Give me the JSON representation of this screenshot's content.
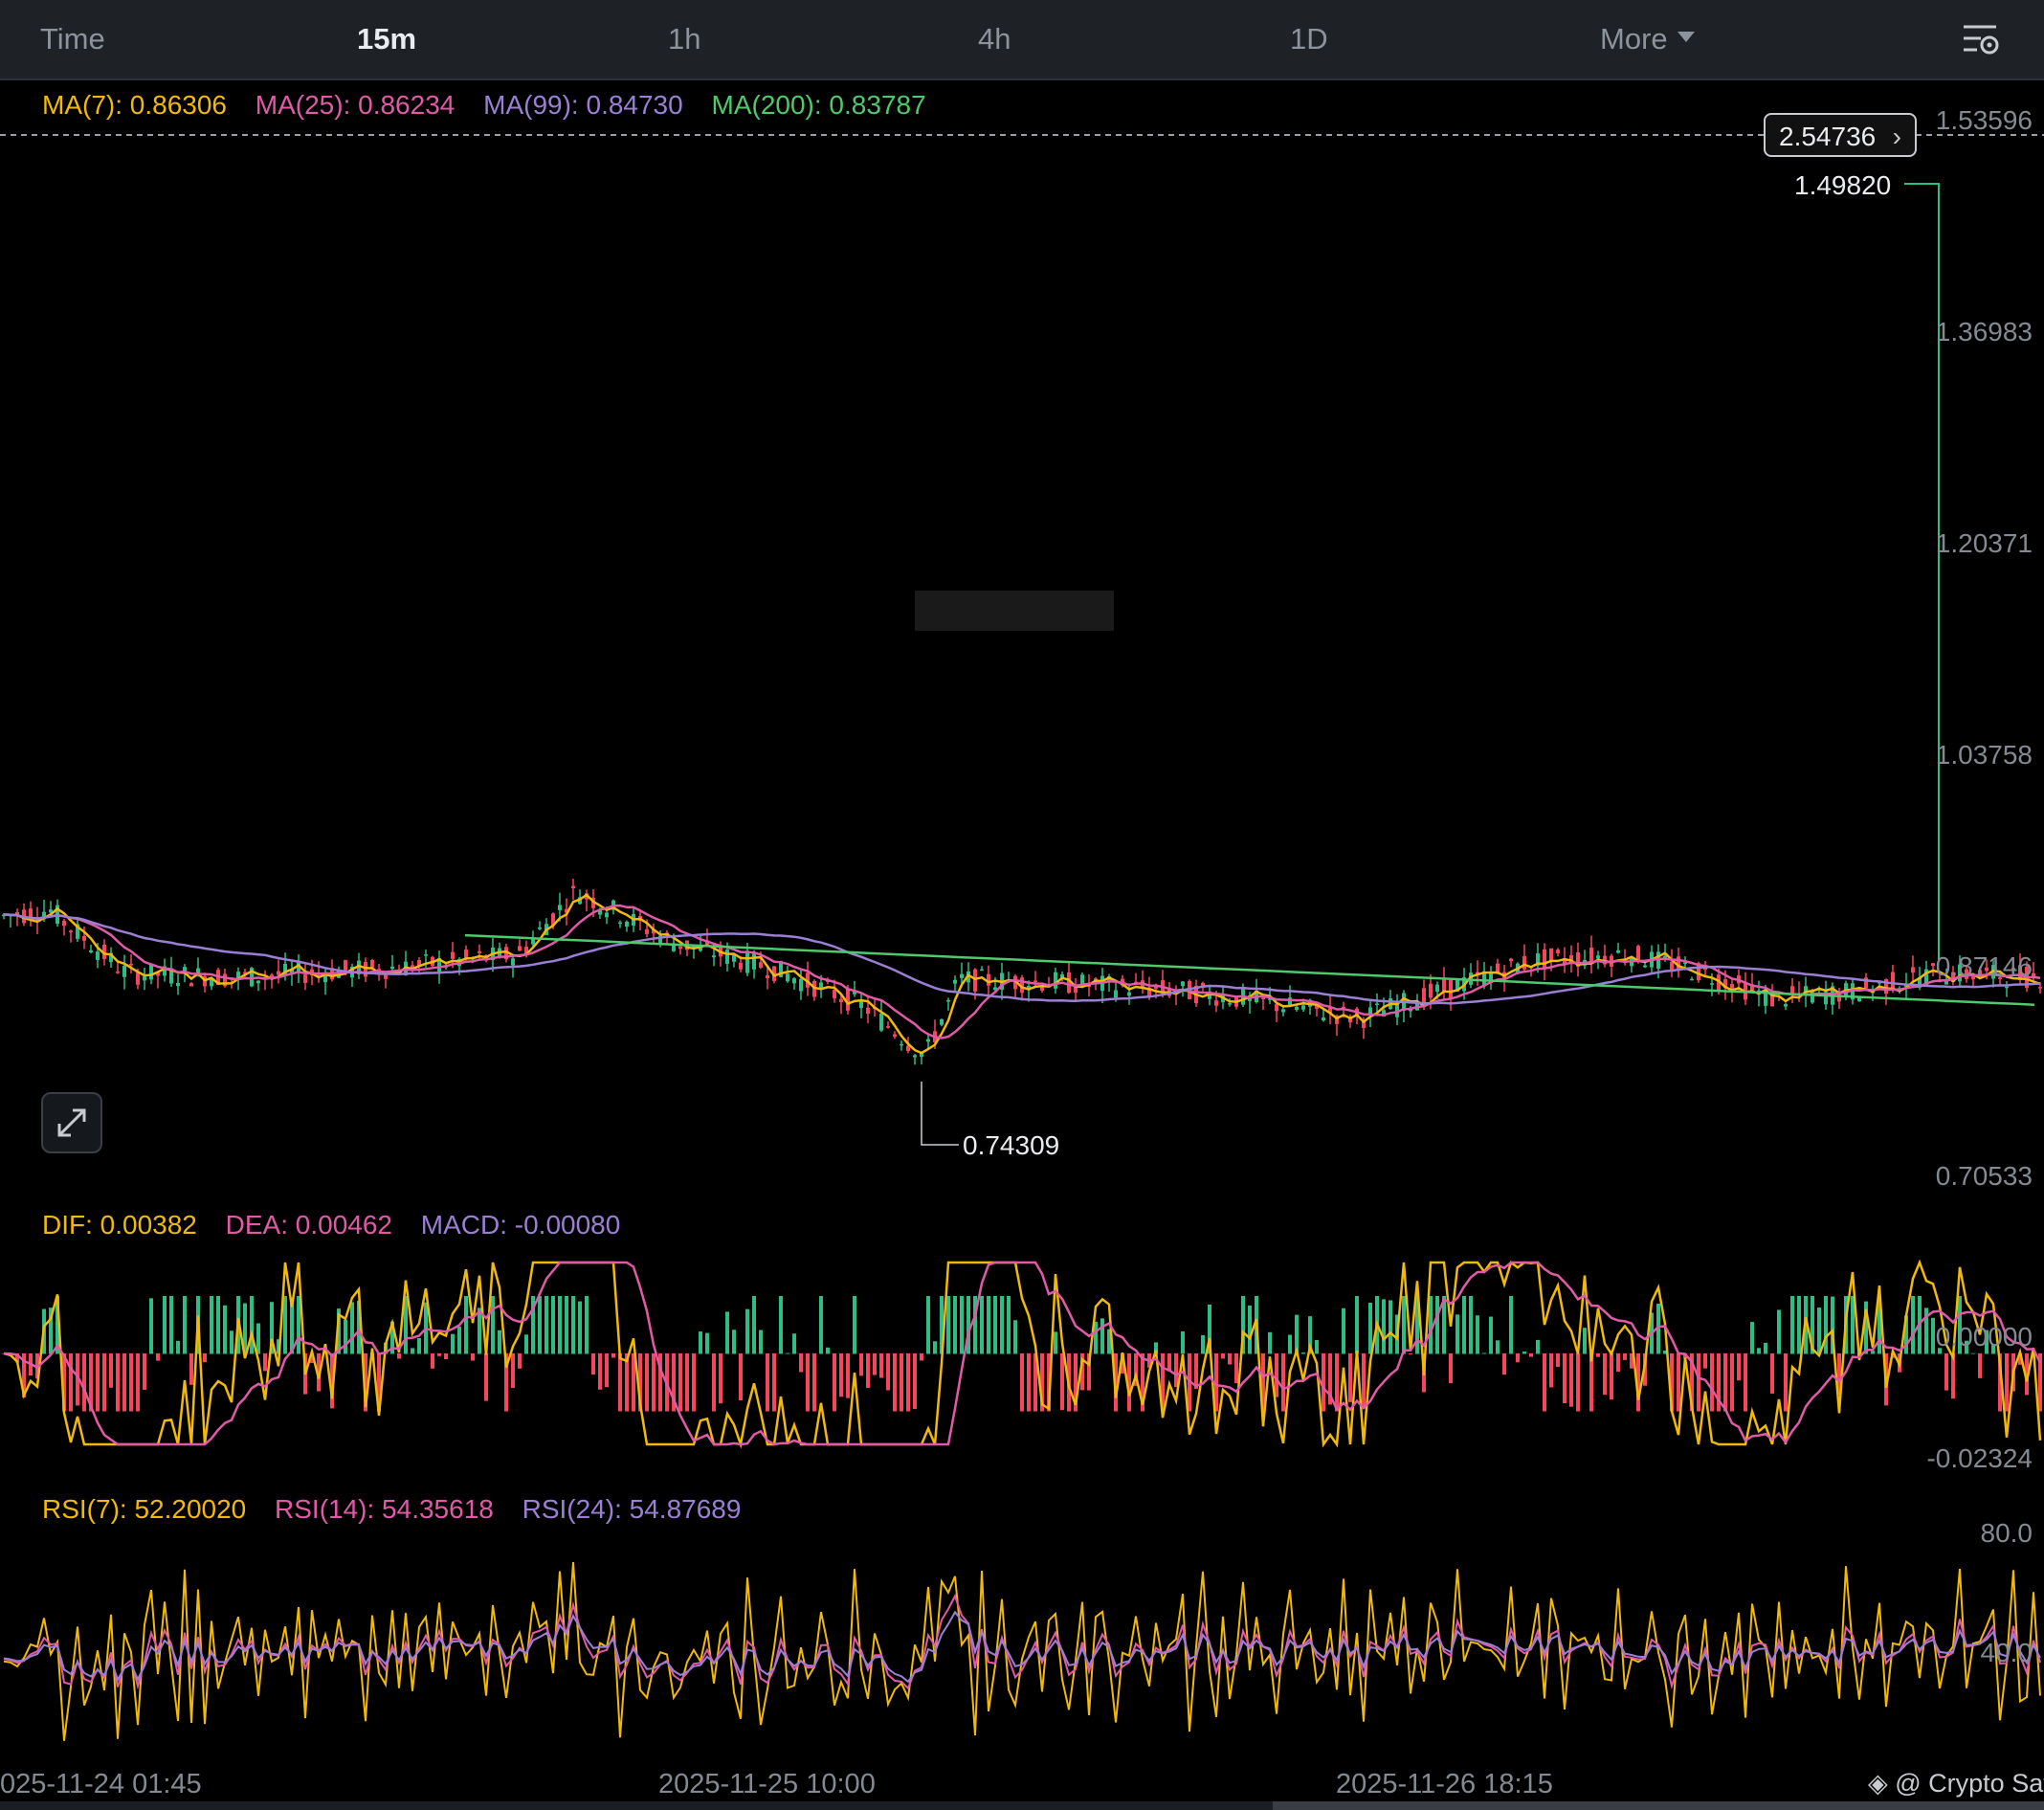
{
  "toolbar": {
    "tabs": [
      {
        "label": "Time",
        "active": false
      },
      {
        "label": "15m",
        "active": true
      },
      {
        "label": "1h",
        "active": false
      },
      {
        "label": "4h",
        "active": false
      },
      {
        "label": "1D",
        "active": false
      },
      {
        "label": "More",
        "active": false
      }
    ],
    "settings_icon": "chart-settings-icon"
  },
  "ma_legend": {
    "ma7": "MA(7): 0.86306",
    "ma25": "MA(25): 0.86234",
    "ma99": "MA(99): 0.84730",
    "ma200": "MA(200): 0.83787"
  },
  "price_axis": [
    "1.53596",
    "1.36983",
    "1.20371",
    "1.03758",
    "0.87146",
    "0.70533"
  ],
  "price_badge": "2.54736",
  "high_label": "1.49820",
  "low_label": "0.74309",
  "macd_legend": {
    "dif": "DIF: 0.00382",
    "dea": "DEA: 0.00462",
    "macd": "MACD: -0.00080"
  },
  "macd_axis": [
    "0.00000",
    "-0.02324"
  ],
  "rsi_legend": {
    "rsi7": "RSI(7): 52.20020",
    "rsi14": "RSI(14): 54.35618",
    "rsi24": "RSI(24): 54.87689"
  },
  "rsi_axis": [
    "80.0",
    "40.0"
  ],
  "time_axis": [
    "025-11-24 01:45",
    "2025-11-25 10:00",
    "2025-11-26 18:15"
  ],
  "brand": "@ Crypto Sat",
  "colors": {
    "ma7": "#f0b90b",
    "ma25": "#e05aa8",
    "ma99": "#9b7fd4",
    "ma200": "#4ec96b",
    "up": "#2ebd85",
    "down": "#f6465d",
    "background": "#000000"
  },
  "chart_data": {
    "type": "candlestick",
    "timeframe": "15m",
    "price_range": [
      0.70533,
      1.53596
    ],
    "last_price_badge": 2.54736,
    "period_high": 1.4982,
    "period_low": 0.74309,
    "indicators": {
      "MA7": 0.86306,
      "MA25": 0.86234,
      "MA99": 0.8473,
      "MA200": 0.83787,
      "DIF": 0.00382,
      "DEA": 0.00462,
      "MACD": -0.0008,
      "RSI7": 52.2002,
      "RSI14": 54.35618,
      "RSI24": 54.87689
    },
    "x_ticks": [
      "025-11-24 01:45",
      "2025-11-25 10:00",
      "2025-11-26 18:15"
    ]
  }
}
